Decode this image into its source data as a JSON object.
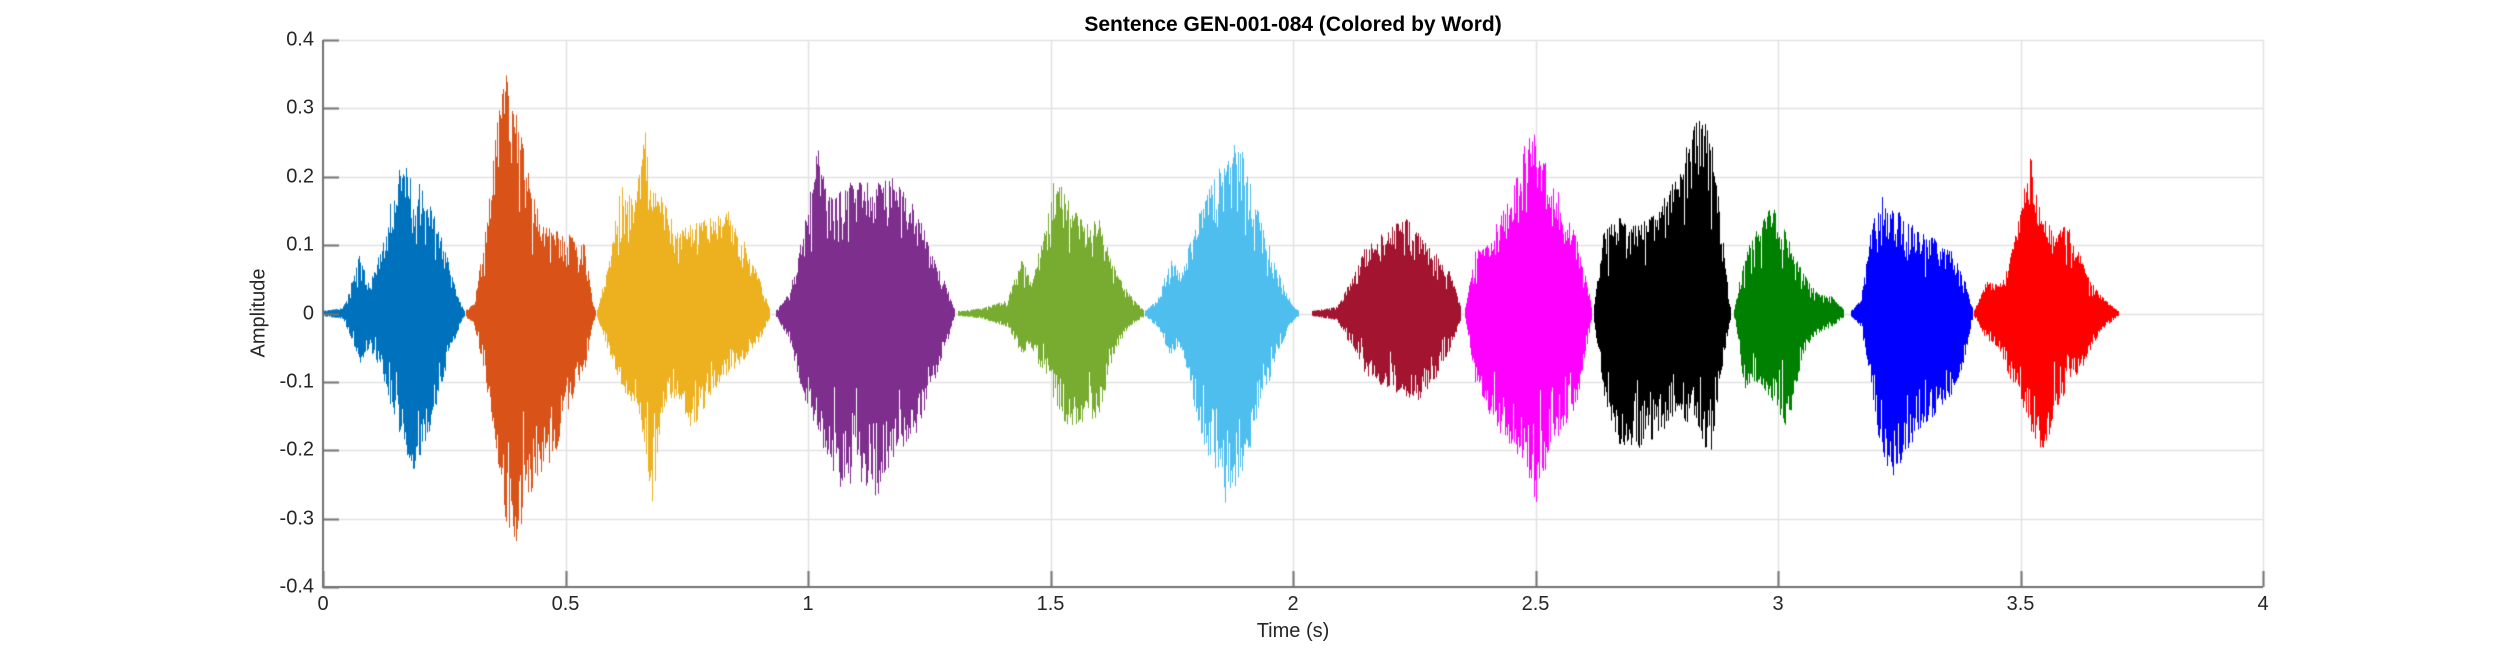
{
  "figure": {
    "title": "Sentence GEN-001-084 (Colored by Word)",
    "xlabel": "Time (s)",
    "ylabel": "Amplitude",
    "background_color": "#ffffff"
  },
  "chart_data": {
    "type": "line",
    "subtype": "audio-waveform-colored-by-word",
    "title": "Sentence GEN-001-084 (Colored by Word)",
    "xlabel": "Time (s)",
    "ylabel": "Amplitude",
    "xlim": [
      0,
      4
    ],
    "ylim": [
      -0.4,
      0.4
    ],
    "grid": true,
    "legend": "none",
    "axis_color": "#737373",
    "grid_color": "#e2e2e2",
    "tick_label_color": "#262626",
    "xticks": {
      "values": [
        0,
        0.5,
        1,
        1.5,
        2,
        2.5,
        3,
        3.5,
        4
      ],
      "labels": [
        "0",
        "0.5",
        "1",
        "1.5",
        "2",
        "2.5",
        "3",
        "3.5",
        "4"
      ]
    },
    "yticks": {
      "values": [
        -0.4,
        -0.3,
        -0.2,
        -0.1,
        0,
        0.1,
        0.2,
        0.3,
        0.4
      ],
      "labels": [
        "-0.4",
        "-0.3",
        "-0.2",
        "-0.1",
        "0",
        "0.1",
        "0.2",
        "0.3",
        "0.4"
      ]
    },
    "words": [
      {
        "index": 1,
        "color": "#0072BD",
        "t_start": 0.0,
        "t_end": 0.29,
        "peak_amplitude": 0.23,
        "min_amplitude": -0.25,
        "envelope": [
          [
            0.0,
            0.004,
            0.004
          ],
          [
            0.04,
            0.008,
            0.008
          ],
          [
            0.06,
            0.05,
            0.04
          ],
          [
            0.075,
            0.09,
            0.08
          ],
          [
            0.095,
            0.04,
            0.05
          ],
          [
            0.12,
            0.1,
            0.09
          ],
          [
            0.15,
            0.2,
            0.16
          ],
          [
            0.17,
            0.23,
            0.2
          ],
          [
            0.19,
            0.2,
            0.25
          ],
          [
            0.22,
            0.16,
            0.17
          ],
          [
            0.25,
            0.1,
            0.09
          ],
          [
            0.275,
            0.03,
            0.03
          ],
          [
            0.29,
            0.005,
            0.005
          ]
        ]
      },
      {
        "index": 2,
        "color": "#D95319",
        "t_start": 0.295,
        "t_end": 0.56,
        "peak_amplitude": 0.37,
        "min_amplitude": -0.34,
        "envelope": [
          [
            0.295,
            0.006,
            0.006
          ],
          [
            0.31,
            0.015,
            0.015
          ],
          [
            0.33,
            0.1,
            0.08
          ],
          [
            0.36,
            0.3,
            0.22
          ],
          [
            0.375,
            0.37,
            0.3
          ],
          [
            0.395,
            0.3,
            0.34
          ],
          [
            0.42,
            0.22,
            0.28
          ],
          [
            0.45,
            0.13,
            0.24
          ],
          [
            0.48,
            0.12,
            0.2
          ],
          [
            0.51,
            0.12,
            0.13
          ],
          [
            0.54,
            0.1,
            0.08
          ],
          [
            0.555,
            0.02,
            0.02
          ],
          [
            0.56,
            0.006,
            0.006
          ]
        ]
      },
      {
        "index": 3,
        "color": "#EDB120",
        "t_start": 0.565,
        "t_end": 0.92,
        "peak_amplitude": 0.27,
        "min_amplitude": -0.31,
        "envelope": [
          [
            0.565,
            0.006,
            0.006
          ],
          [
            0.59,
            0.08,
            0.06
          ],
          [
            0.615,
            0.2,
            0.12
          ],
          [
            0.64,
            0.16,
            0.13
          ],
          [
            0.665,
            0.27,
            0.2
          ],
          [
            0.675,
            0.18,
            0.31
          ],
          [
            0.7,
            0.17,
            0.14
          ],
          [
            0.73,
            0.12,
            0.12
          ],
          [
            0.76,
            0.13,
            0.17
          ],
          [
            0.8,
            0.14,
            0.12
          ],
          [
            0.835,
            0.15,
            0.09
          ],
          [
            0.865,
            0.11,
            0.07
          ],
          [
            0.9,
            0.05,
            0.04
          ],
          [
            0.92,
            0.008,
            0.008
          ]
        ]
      },
      {
        "index": 4,
        "color": "#7E2F8E",
        "t_start": 0.935,
        "t_end": 1.3,
        "peak_amplitude": 0.25,
        "min_amplitude": -0.27,
        "envelope": [
          [
            0.935,
            0.005,
            0.005
          ],
          [
            0.96,
            0.03,
            0.04
          ],
          [
            0.99,
            0.12,
            0.12
          ],
          [
            1.02,
            0.25,
            0.18
          ],
          [
            1.045,
            0.17,
            0.22
          ],
          [
            1.07,
            0.18,
            0.26
          ],
          [
            1.1,
            0.2,
            0.24
          ],
          [
            1.14,
            0.19,
            0.27
          ],
          [
            1.18,
            0.2,
            0.21
          ],
          [
            1.22,
            0.16,
            0.18
          ],
          [
            1.25,
            0.1,
            0.12
          ],
          [
            1.28,
            0.05,
            0.06
          ],
          [
            1.3,
            0.008,
            0.008
          ]
        ]
      },
      {
        "index": 5,
        "color": "#77AC30",
        "t_start": 1.31,
        "t_end": 1.69,
        "peak_amplitude": 0.21,
        "min_amplitude": -0.18,
        "envelope": [
          [
            1.31,
            0.004,
            0.004
          ],
          [
            1.36,
            0.008,
            0.008
          ],
          [
            1.41,
            0.02,
            0.02
          ],
          [
            1.44,
            0.08,
            0.06
          ],
          [
            1.46,
            0.05,
            0.05
          ],
          [
            1.49,
            0.13,
            0.1
          ],
          [
            1.51,
            0.21,
            0.13
          ],
          [
            1.54,
            0.16,
            0.18
          ],
          [
            1.57,
            0.13,
            0.16
          ],
          [
            1.6,
            0.14,
            0.15
          ],
          [
            1.63,
            0.07,
            0.06
          ],
          [
            1.66,
            0.03,
            0.02
          ],
          [
            1.69,
            0.006,
            0.006
          ]
        ]
      },
      {
        "index": 6,
        "color": "#4DBEEE",
        "t_start": 1.695,
        "t_end": 2.01,
        "peak_amplitude": 0.26,
        "min_amplitude": -0.28,
        "envelope": [
          [
            1.695,
            0.005,
            0.005
          ],
          [
            1.72,
            0.02,
            0.02
          ],
          [
            1.745,
            0.08,
            0.06
          ],
          [
            1.77,
            0.06,
            0.05
          ],
          [
            1.8,
            0.14,
            0.16
          ],
          [
            1.83,
            0.19,
            0.22
          ],
          [
            1.86,
            0.23,
            0.28
          ],
          [
            1.885,
            0.26,
            0.25
          ],
          [
            1.91,
            0.2,
            0.2
          ],
          [
            1.94,
            0.12,
            0.12
          ],
          [
            1.97,
            0.06,
            0.06
          ],
          [
            2.0,
            0.01,
            0.01
          ],
          [
            2.01,
            0.005,
            0.005
          ]
        ]
      },
      {
        "index": 7,
        "color": "#A2142F",
        "t_start": 2.04,
        "t_end": 2.345,
        "peak_amplitude": 0.14,
        "min_amplitude": -0.13,
        "envelope": [
          [
            2.04,
            0.004,
            0.004
          ],
          [
            2.09,
            0.01,
            0.01
          ],
          [
            2.12,
            0.05,
            0.05
          ],
          [
            2.15,
            0.1,
            0.09
          ],
          [
            2.19,
            0.12,
            0.11
          ],
          [
            2.23,
            0.14,
            0.12
          ],
          [
            2.26,
            0.12,
            0.13
          ],
          [
            2.29,
            0.09,
            0.1
          ],
          [
            2.32,
            0.07,
            0.06
          ],
          [
            2.345,
            0.01,
            0.01
          ]
        ]
      },
      {
        "index": 8,
        "color": "#FF00FF",
        "t_start": 2.355,
        "t_end": 2.615,
        "peak_amplitude": 0.28,
        "min_amplitude": -0.29,
        "envelope": [
          [
            2.355,
            0.01,
            0.01
          ],
          [
            2.375,
            0.09,
            0.1
          ],
          [
            2.41,
            0.12,
            0.16
          ],
          [
            2.45,
            0.18,
            0.2
          ],
          [
            2.49,
            0.28,
            0.25
          ],
          [
            2.505,
            0.24,
            0.29
          ],
          [
            2.53,
            0.21,
            0.19
          ],
          [
            2.56,
            0.15,
            0.17
          ],
          [
            2.585,
            0.11,
            0.13
          ],
          [
            2.61,
            0.03,
            0.03
          ],
          [
            2.615,
            0.01,
            0.01
          ]
        ]
      },
      {
        "index": 9,
        "color": "#000000",
        "t_start": 2.62,
        "t_end": 2.9,
        "peak_amplitude": 0.29,
        "min_amplitude": -0.21,
        "envelope": [
          [
            2.62,
            0.01,
            0.01
          ],
          [
            2.64,
            0.12,
            0.12
          ],
          [
            2.67,
            0.14,
            0.19
          ],
          [
            2.71,
            0.13,
            0.2
          ],
          [
            2.75,
            0.15,
            0.18
          ],
          [
            2.79,
            0.2,
            0.15
          ],
          [
            2.83,
            0.29,
            0.17
          ],
          [
            2.86,
            0.27,
            0.21
          ],
          [
            2.88,
            0.15,
            0.1
          ],
          [
            2.9,
            0.01,
            0.01
          ]
        ]
      },
      {
        "index": 10,
        "color": "#008000",
        "t_start": 2.91,
        "t_end": 3.135,
        "peak_amplitude": 0.16,
        "min_amplitude": -0.17,
        "envelope": [
          [
            2.91,
            0.008,
            0.008
          ],
          [
            2.93,
            0.09,
            0.11
          ],
          [
            2.96,
            0.13,
            0.1
          ],
          [
            2.99,
            0.16,
            0.13
          ],
          [
            3.02,
            0.11,
            0.17
          ],
          [
            3.05,
            0.06,
            0.06
          ],
          [
            3.08,
            0.03,
            0.03
          ],
          [
            3.11,
            0.025,
            0.02
          ],
          [
            3.135,
            0.006,
            0.006
          ]
        ]
      },
      {
        "index": 11,
        "color": "#0000FF",
        "t_start": 3.15,
        "t_end": 3.4,
        "peak_amplitude": 0.18,
        "min_amplitude": -0.24,
        "envelope": [
          [
            3.15,
            0.004,
            0.004
          ],
          [
            3.17,
            0.02,
            0.02
          ],
          [
            3.19,
            0.12,
            0.1
          ],
          [
            3.21,
            0.18,
            0.2
          ],
          [
            3.235,
            0.16,
            0.24
          ],
          [
            3.26,
            0.14,
            0.21
          ],
          [
            3.29,
            0.12,
            0.17
          ],
          [
            3.32,
            0.11,
            0.15
          ],
          [
            3.35,
            0.1,
            0.13
          ],
          [
            3.38,
            0.06,
            0.08
          ],
          [
            3.4,
            0.01,
            0.01
          ]
        ]
      },
      {
        "index": 12,
        "color": "#FF0000",
        "t_start": 3.405,
        "t_end": 3.7,
        "peak_amplitude": 0.23,
        "min_amplitude": -0.21,
        "envelope": [
          [
            3.405,
            0.006,
            0.006
          ],
          [
            3.43,
            0.05,
            0.04
          ],
          [
            3.455,
            0.04,
            0.05
          ],
          [
            3.475,
            0.07,
            0.09
          ],
          [
            3.5,
            0.16,
            0.13
          ],
          [
            3.52,
            0.23,
            0.17
          ],
          [
            3.545,
            0.14,
            0.21
          ],
          [
            3.57,
            0.12,
            0.15
          ],
          [
            3.6,
            0.13,
            0.1
          ],
          [
            3.63,
            0.07,
            0.08
          ],
          [
            3.66,
            0.03,
            0.03
          ],
          [
            3.7,
            0.004,
            0.004
          ]
        ]
      }
    ]
  }
}
